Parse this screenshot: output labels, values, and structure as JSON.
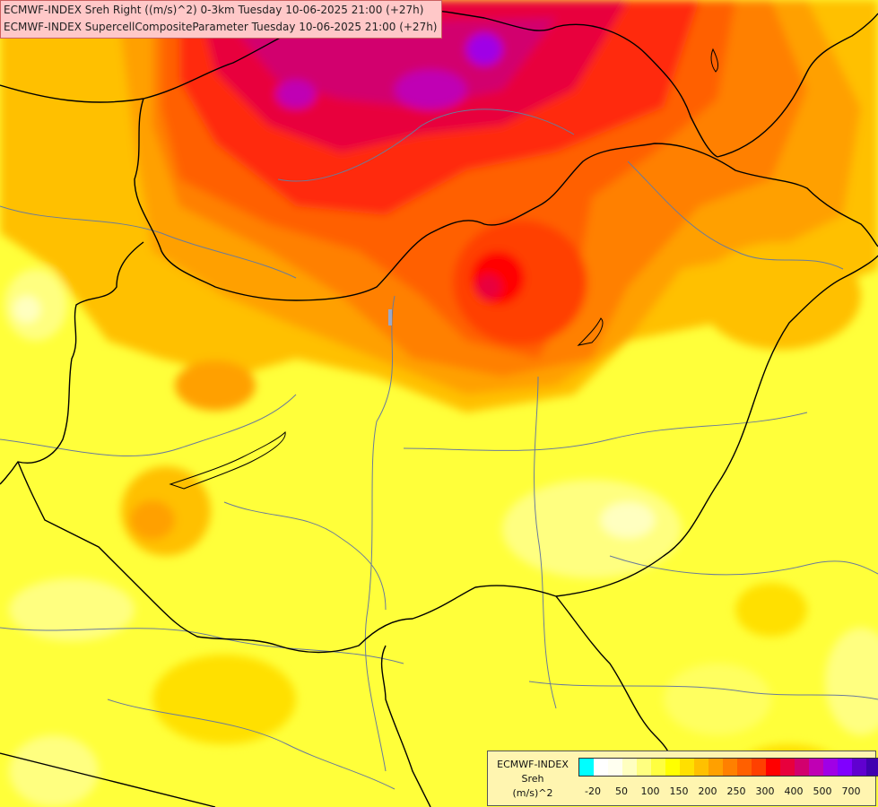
{
  "header": {
    "line1": "ECMWF-INDEX Sreh Right ((m/s)^2) 0-3km Tuesday 10-06-2025 21:00 (+27h)",
    "line2": "ECMWF-INDEX SupercellCompositeParameter Tuesday 10-06-2025 21:00 (+27h)"
  },
  "legend": {
    "line1": "ECMWF-INDEX",
    "line2": "Sreh",
    "line3": "(m/s)^2",
    "colors": [
      "#00ffff",
      "#ffffff",
      "#fffff0",
      "#ffffc0",
      "#ffff80",
      "#ffff40",
      "#ffff00",
      "#ffe000",
      "#ffc000",
      "#ffa000",
      "#ff8000",
      "#ff6000",
      "#ff4000",
      "#ff0000",
      "#e8003c",
      "#d2006e",
      "#c000b4",
      "#a000e6",
      "#8000ff",
      "#6000d0",
      "#4000b0",
      "#000080"
    ],
    "ticks": [
      "-20",
      "50",
      "100",
      "150",
      "200",
      "250",
      "300",
      "400",
      "500",
      "700"
    ]
  }
}
